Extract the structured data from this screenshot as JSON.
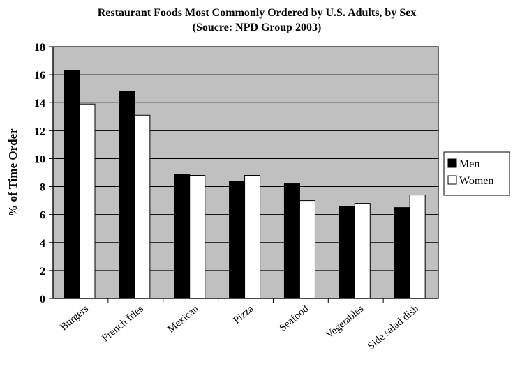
{
  "chart_data": {
    "type": "bar",
    "title": "Restaurant Foods Most Commonly Ordered by U.S. Adults, by Sex",
    "subtitle": "(Soucre: NPD Group 2003)",
    "xlabel": "",
    "ylabel": "% of Time Order",
    "ylim": [
      0,
      18
    ],
    "yticks": [
      0,
      2,
      4,
      6,
      8,
      10,
      12,
      14,
      16,
      18
    ],
    "grid": true,
    "legend_position": "right",
    "categories": [
      "Burgers",
      "French fries",
      "Mexican",
      "Pizza",
      "Seafood",
      "Vegetables",
      "Side salad dish"
    ],
    "series": [
      {
        "name": "Men",
        "color": "#000000",
        "values": [
          16.3,
          14.8,
          8.9,
          8.4,
          8.2,
          6.6,
          6.5
        ]
      },
      {
        "name": "Women",
        "color": "#ffffff",
        "values": [
          13.9,
          13.1,
          8.8,
          8.8,
          7.0,
          6.8,
          7.4
        ]
      }
    ],
    "plot_background": "#c0c0c0"
  }
}
